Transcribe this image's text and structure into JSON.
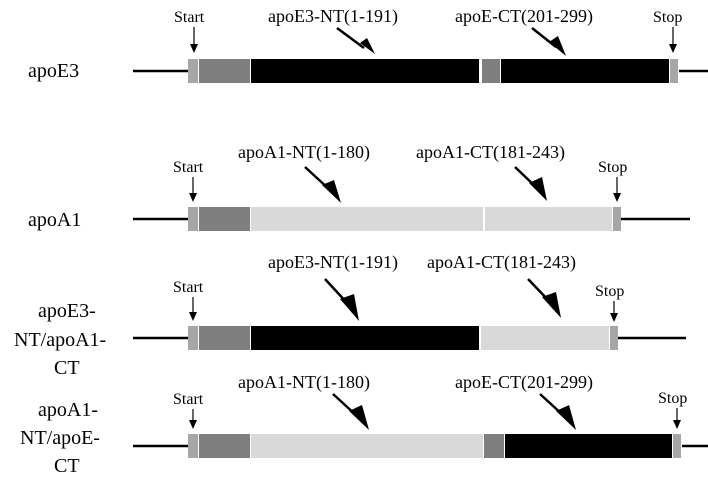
{
  "constructs": [
    {
      "label_lines": [
        "apoE3"
      ],
      "marker_start": "Start",
      "marker_stop": "Stop",
      "segments": [
        {
          "kind": "signal",
          "color": "#a6a6a6"
        },
        {
          "kind": "pro",
          "color": "#7f7f7f"
        },
        {
          "kind": "apoE3-NT",
          "color": "#000000"
        },
        {
          "kind": "hinge",
          "color": "#7f7f7f"
        },
        {
          "kind": "apoE-CT",
          "color": "#000000"
        },
        {
          "kind": "stop-tail",
          "color": "#a6a6a6"
        }
      ],
      "annotations": [
        "apoE3-NT(1-191)",
        "apoE-CT(201-299)"
      ]
    },
    {
      "label_lines": [
        "apoA1"
      ],
      "marker_start": "Start",
      "marker_stop": "Stop",
      "segments": [
        {
          "kind": "signal",
          "color": "#a6a6a6"
        },
        {
          "kind": "pro",
          "color": "#7f7f7f"
        },
        {
          "kind": "apoA1-NT",
          "color": "#d9d9d9"
        },
        {
          "kind": "apoA1-CT",
          "color": "#d9d9d9"
        },
        {
          "kind": "stop-tail",
          "color": "#a6a6a6"
        }
      ],
      "annotations": [
        "apoA1-NT(1-180)",
        "apoA1-CT(181-243)"
      ]
    },
    {
      "label_lines": [
        "apoE3-",
        "NT/apoA1-",
        "CT"
      ],
      "marker_start": "Start",
      "marker_stop": "Stop",
      "segments": [
        {
          "kind": "signal",
          "color": "#a6a6a6"
        },
        {
          "kind": "pro",
          "color": "#7f7f7f"
        },
        {
          "kind": "apoE3-NT",
          "color": "#000000"
        },
        {
          "kind": "apoA1-CT",
          "color": "#d9d9d9"
        },
        {
          "kind": "stop-tail",
          "color": "#a6a6a6"
        }
      ],
      "annotations": [
        "apoE3-NT(1-191)",
        "apoA1-CT(181-243)"
      ]
    },
    {
      "label_lines": [
        "apoA1-",
        "NT/apoE-",
        "CT"
      ],
      "marker_start": "Start",
      "marker_stop": "Stop",
      "segments": [
        {
          "kind": "signal",
          "color": "#a6a6a6"
        },
        {
          "kind": "pro",
          "color": "#7f7f7f"
        },
        {
          "kind": "apoA1-NT",
          "color": "#d9d9d9"
        },
        {
          "kind": "hinge",
          "color": "#7f7f7f"
        },
        {
          "kind": "apoE-CT",
          "color": "#000000"
        },
        {
          "kind": "stop-tail",
          "color": "#a6a6a6"
        }
      ],
      "annotations": [
        "apoA1-NT(1-180)",
        "apoE-CT(201-299)"
      ]
    }
  ]
}
